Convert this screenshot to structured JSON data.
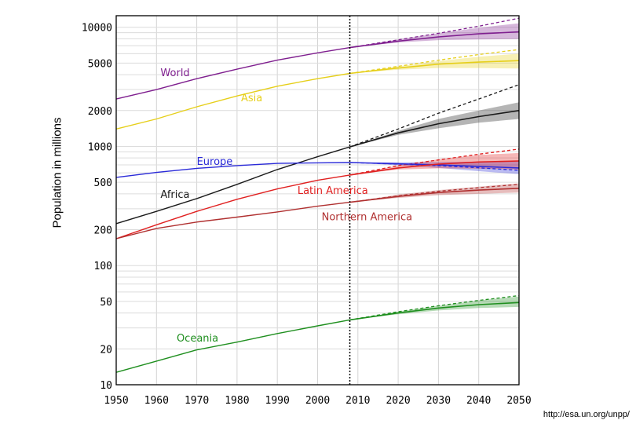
{
  "chart_data": {
    "type": "line",
    "title": "",
    "xlabel": "",
    "ylabel": "Population in millions",
    "yscale": "log",
    "xlim": [
      1950,
      2050
    ],
    "ylim": [
      10,
      12500
    ],
    "x_ticks": [
      1950,
      1960,
      1970,
      1980,
      1990,
      2000,
      2010,
      2020,
      2030,
      2040,
      2050
    ],
    "y_ticks": [
      10,
      20,
      50,
      100,
      200,
      500,
      1000,
      2000,
      5000,
      10000
    ],
    "reference_year": 2008,
    "grid": true,
    "source": "http://esa.un.org/unpp/",
    "series": [
      {
        "name": "World",
        "color": "#7f1f8f",
        "x": [
          1950,
          1960,
          1970,
          1980,
          1990,
          2000,
          2008
        ],
        "values": [
          2500,
          3000,
          3700,
          4450,
          5300,
          6100,
          6750
        ],
        "projection_x": [
          2008,
          2020,
          2030,
          2040,
          2050
        ],
        "projection": [
          6750,
          7650,
          8300,
          8800,
          9150
        ],
        "projection_high": [
          6750,
          7900,
          8900,
          9900,
          10800
        ],
        "projection_low": [
          6750,
          7450,
          7800,
          7900,
          7950
        ],
        "constant_fertility": [
          6750,
          7850,
          8900,
          10200,
          11900
        ],
        "label_x": 1961,
        "label_y": 3900
      },
      {
        "name": "Asia",
        "color": "#e6cf1a",
        "x": [
          1950,
          1960,
          1970,
          1980,
          1990,
          2000,
          2008
        ],
        "values": [
          1400,
          1700,
          2150,
          2650,
          3200,
          3700,
          4100
        ],
        "projection_x": [
          2008,
          2020,
          2030,
          2040,
          2050
        ],
        "projection": [
          4100,
          4550,
          4900,
          5100,
          5250
        ],
        "projection_high": [
          4100,
          4700,
          5200,
          5650,
          6000
        ],
        "projection_low": [
          4100,
          4400,
          4550,
          4550,
          4500
        ],
        "constant_fertility": [
          4100,
          4700,
          5300,
          5900,
          6500
        ],
        "label_x": 1981,
        "label_y": 2400
      },
      {
        "name": "Africa",
        "color": "#1a1a1a",
        "x": [
          1950,
          1960,
          1970,
          1980,
          1990,
          2000,
          2008
        ],
        "values": [
          225,
          285,
          365,
          480,
          640,
          820,
          990
        ],
        "projection_x": [
          2008,
          2020,
          2030,
          2040,
          2050
        ],
        "projection": [
          990,
          1300,
          1550,
          1780,
          2000
        ],
        "projection_high": [
          990,
          1350,
          1700,
          2000,
          2350
        ],
        "projection_low": [
          990,
          1250,
          1420,
          1580,
          1700
        ],
        "constant_fertility": [
          990,
          1400,
          1900,
          2500,
          3300
        ],
        "label_x": 1961,
        "label_y": 370
      },
      {
        "name": "Europe",
        "color": "#2a2ad8",
        "x": [
          1950,
          1960,
          1970,
          1980,
          1990,
          2000,
          2008
        ],
        "values": [
          550,
          605,
          655,
          690,
          720,
          728,
          732
        ],
        "projection_x": [
          2008,
          2020,
          2030,
          2040,
          2050
        ],
        "projection": [
          732,
          715,
          700,
          680,
          660
        ],
        "projection_high": [
          732,
          735,
          740,
          745,
          750
        ],
        "projection_low": [
          732,
          695,
          660,
          620,
          585
        ],
        "constant_fertility": [
          732,
          712,
          690,
          662,
          630
        ],
        "label_x": 1970,
        "label_y": 700
      },
      {
        "name": "Latin America",
        "color": "#e02020",
        "x": [
          1950,
          1960,
          1970,
          1980,
          1990,
          2000,
          2008
        ],
        "values": [
          168,
          220,
          285,
          360,
          440,
          520,
          575
        ],
        "projection_x": [
          2008,
          2020,
          2030,
          2040,
          2050
        ],
        "projection": [
          575,
          660,
          710,
          740,
          755
        ],
        "projection_high": [
          575,
          690,
          780,
          850,
          880
        ],
        "projection_low": [
          575,
          640,
          655,
          650,
          640
        ],
        "constant_fertility": [
          575,
          690,
          770,
          860,
          950
        ],
        "label_x": 1995,
        "label_y": 400
      },
      {
        "name": "Northern America",
        "color": "#b03030",
        "x": [
          1950,
          1960,
          1970,
          1980,
          1990,
          2000,
          2008
        ],
        "values": [
          168,
          205,
          232,
          255,
          282,
          315,
          340
        ],
        "projection_x": [
          2008,
          2020,
          2030,
          2040,
          2050
        ],
        "projection": [
          340,
          380,
          410,
          430,
          445
        ],
        "projection_high": [
          340,
          395,
          430,
          460,
          490
        ],
        "projection_low": [
          340,
          370,
          390,
          400,
          410
        ],
        "constant_fertility": [
          340,
          385,
          420,
          450,
          480
        ],
        "label_x": 2001,
        "label_y": 240
      },
      {
        "name": "Oceania",
        "color": "#1f8f1f",
        "x": [
          1950,
          1960,
          1970,
          1980,
          1990,
          2000,
          2008
        ],
        "values": [
          12.7,
          15.8,
          19.6,
          22.8,
          26.9,
          31.2,
          35
        ],
        "projection_x": [
          2008,
          2020,
          2030,
          2040,
          2050
        ],
        "projection": [
          35,
          40,
          44,
          47,
          49
        ],
        "projection_high": [
          35,
          41,
          46,
          51,
          55
        ],
        "projection_low": [
          35,
          39,
          42,
          44,
          45
        ],
        "constant_fertility": [
          35,
          41,
          46,
          51,
          56
        ],
        "label_x": 1965,
        "label_y": 23
      }
    ]
  }
}
